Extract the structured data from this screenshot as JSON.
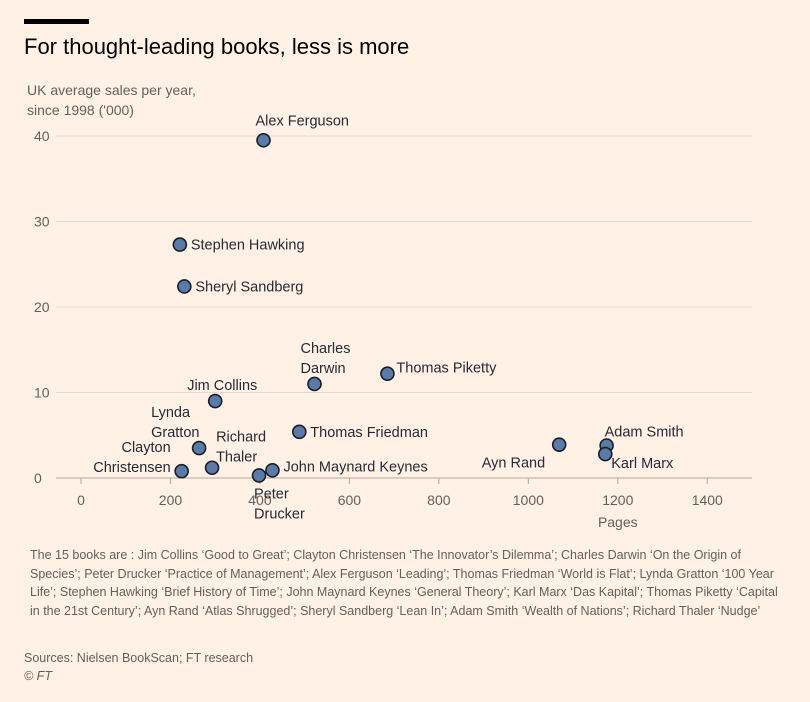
{
  "title": "For thought-leading books, less is more",
  "footnote": "The 15 books are : Jim Collins  ‘Good to Great’; Clayton Christensen ‘The Innovator’s Dilemma’; Charles Darwin ‘On the Origin of Species’; Peter Drucker  ‘Practice of Management’; Alex Ferguson ‘Leading’; Thomas Friedman ‘World is Flat’; Lynda Gratton ‘100 Year Life’; Stephen Hawking ‘Brief History of Time’; John Maynard Keynes ‘General Theory’; Karl Marx ‘Das Kapital’; Thomas Piketty ‘Capital in the 21st Century’; Ayn Rand ‘Atlas Shrugged’; Sheryl Sandberg ‘Lean In’; Adam Smith ‘Wealth of Nations’; Richard Thaler ‘Nudge’",
  "sources": "Sources: Nielsen BookScan; FT research",
  "credit": "© FT",
  "colors": {
    "background": "#fff1e5",
    "marker_fill": "#5a7aa8",
    "marker_stroke": "#1a1d24",
    "grid": "#e6d9ce",
    "axis": "#b3a9a0"
  },
  "chart_data": {
    "type": "scatter",
    "title": "For thought-leading books, less is more",
    "ylabel": "UK average sales per year,\nsince 1998 ('000)",
    "xlabel": "Pages",
    "xlim": [
      0,
      1500
    ],
    "ylim": [
      0,
      40
    ],
    "xticks": [
      0,
      200,
      400,
      600,
      800,
      1000,
      1200,
      1400
    ],
    "yticks": [
      0,
      10,
      20,
      30,
      40
    ],
    "grid": "horizontal",
    "points": [
      {
        "name": "Alex Ferguson",
        "x": 408,
        "y": 39.5
      },
      {
        "name": "Stephen Hawking",
        "x": 221,
        "y": 27.3
      },
      {
        "name": "Sheryl Sandberg",
        "x": 231,
        "y": 22.4
      },
      {
        "name": "Charles Darwin",
        "x": 522,
        "y": 11.0
      },
      {
        "name": "Thomas Piketty",
        "x": 685,
        "y": 12.2
      },
      {
        "name": "Jim Collins",
        "x": 300,
        "y": 9.0
      },
      {
        "name": "Lynda Gratton",
        "x": 264,
        "y": 3.5
      },
      {
        "name": "Thomas Friedman",
        "x": 488,
        "y": 5.4
      },
      {
        "name": "Clayton Christensen",
        "x": 225,
        "y": 0.8
      },
      {
        "name": "Richard Thaler",
        "x": 293,
        "y": 1.2
      },
      {
        "name": "Peter Drucker",
        "x": 398,
        "y": 0.3
      },
      {
        "name": "John Maynard Keynes",
        "x": 428,
        "y": 0.9
      },
      {
        "name": "Ayn Rand",
        "x": 1069,
        "y": 3.9
      },
      {
        "name": "Adam Smith",
        "x": 1175,
        "y": 3.8
      },
      {
        "name": "Karl Marx",
        "x": 1172,
        "y": 2.8
      }
    ]
  }
}
